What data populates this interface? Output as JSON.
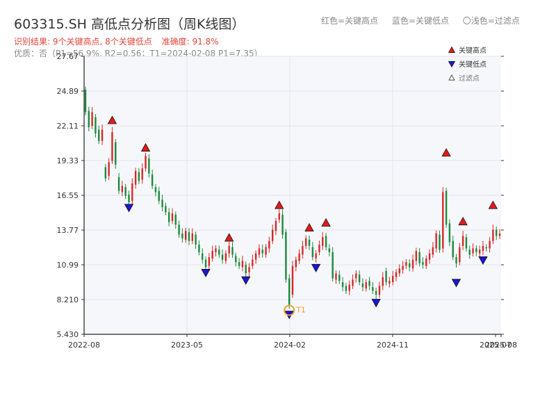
{
  "header": {
    "title": "603315.SH 高低点分析图（周K线图）",
    "legend_red": "红色=关键高点",
    "legend_blue": "蓝色=关键低点",
    "legend_light": "〇浅色=过滤点",
    "result_text": "识别结果: 9个关键高点, 8个关键低点",
    "accuracy_text": "准确度: 91.8%",
    "quality_text": "优质：否（P1=56.9%, R2=0.56；T1=2024-02-08 P1=7.35）"
  },
  "colors": {
    "up": "#d62728",
    "down": "#1a8a3c",
    "high_marker": "#e31a1c",
    "low_marker": "#1a17d6",
    "t1_marker": "#f0a030",
    "title_red": "#e0463a",
    "plot_bg": "#f6f7fa",
    "grid": "#e3e6ee"
  },
  "chart_data": {
    "type": "candlestick",
    "title": "603315.SH 高低点分析图（周K线图）",
    "ylim": [
      5.43,
      27.67
    ],
    "yticks": [
      "27.67",
      "24.89",
      "22.11",
      "19.33",
      "16.55",
      "13.77",
      "10.99",
      "8.210",
      "5.430"
    ],
    "xtick_labels": [
      "2022-08",
      "2023-05",
      "2024-02",
      "2024-11",
      "2025-07",
      "2025-08"
    ],
    "grid": true,
    "legend_placement": "top-right",
    "legend": [
      {
        "label": "关键高点",
        "kind": "high"
      },
      {
        "label": "关键低点",
        "kind": "low"
      },
      {
        "label": "过滤点",
        "kind": "filtered"
      }
    ],
    "t1_label": "T1",
    "t1_value": 7.35,
    "key_highs": [
      {
        "i": 8,
        "value": 22.1
      },
      {
        "i": 18,
        "value": 19.9
      },
      {
        "i": 43,
        "value": 12.7
      },
      {
        "i": 58,
        "value": 15.3
      },
      {
        "i": 67,
        "value": 13.5
      },
      {
        "i": 72,
        "value": 13.9
      },
      {
        "i": 108,
        "value": 19.5
      },
      {
        "i": 113,
        "value": 14.0
      },
      {
        "i": 122,
        "value": 15.3
      }
    ],
    "key_lows": [
      {
        "i": 13,
        "value": 15.9
      },
      {
        "i": 36,
        "value": 10.7
      },
      {
        "i": 48,
        "value": 10.1
      },
      {
        "i": 61,
        "value": 7.35
      },
      {
        "i": 69,
        "value": 11.1
      },
      {
        "i": 87,
        "value": 8.3
      },
      {
        "i": 111,
        "value": 9.9
      },
      {
        "i": 119,
        "value": 11.7
      }
    ],
    "candles": [
      [
        25.0,
        23.2
      ],
      [
        23.3,
        22.0
      ],
      [
        22.1,
        23.2
      ],
      [
        22.8,
        21.5
      ],
      [
        21.8,
        20.9
      ],
      [
        20.9,
        21.8
      ],
      [
        18.8,
        17.9
      ],
      [
        18.1,
        19.2
      ],
      [
        19.3,
        21.6
      ],
      [
        20.8,
        19.0
      ],
      [
        18.0,
        16.9
      ],
      [
        16.8,
        17.3
      ],
      [
        17.2,
        16.5
      ],
      [
        16.6,
        16.0
      ],
      [
        16.1,
        17.5
      ],
      [
        17.4,
        18.5
      ],
      [
        18.4,
        17.7
      ],
      [
        17.8,
        18.7
      ],
      [
        18.7,
        19.7
      ],
      [
        19.5,
        18.3
      ],
      [
        18.2,
        17.3
      ],
      [
        17.2,
        16.8
      ],
      [
        16.9,
        16.1
      ],
      [
        16.2,
        15.6
      ],
      [
        15.7,
        15.2
      ],
      [
        15.2,
        14.4
      ],
      [
        14.5,
        15.1
      ],
      [
        15.0,
        14.2
      ],
      [
        14.2,
        13.4
      ],
      [
        13.5,
        13.1
      ],
      [
        13.0,
        13.7
      ],
      [
        13.6,
        12.9
      ],
      [
        12.9,
        13.5
      ],
      [
        13.4,
        12.6
      ],
      [
        12.6,
        12.0
      ],
      [
        11.9,
        11.4
      ],
      [
        11.4,
        10.8
      ],
      [
        10.9,
        11.6
      ],
      [
        11.5,
        12.1
      ],
      [
        12.0,
        12.3
      ],
      [
        12.2,
        11.8
      ],
      [
        11.8,
        11.4
      ],
      [
        11.3,
        11.9
      ],
      [
        11.9,
        12.5
      ],
      [
        12.4,
        11.8
      ],
      [
        11.7,
        11.2
      ],
      [
        11.2,
        10.9
      ],
      [
        10.8,
        11.3
      ],
      [
        11.0,
        10.3
      ],
      [
        10.4,
        10.8
      ],
      [
        10.9,
        11.4
      ],
      [
        11.4,
        11.9
      ],
      [
        11.8,
        12.3
      ],
      [
        12.2,
        11.9
      ],
      [
        11.8,
        12.4
      ],
      [
        12.3,
        12.9
      ],
      [
        12.9,
        13.8
      ],
      [
        13.7,
        14.5
      ],
      [
        14.6,
        15.1
      ],
      [
        15.0,
        13.4
      ],
      [
        13.6,
        9.8
      ],
      [
        9.9,
        7.8
      ],
      [
        8.6,
        10.9
      ],
      [
        10.8,
        11.4
      ],
      [
        11.3,
        11.9
      ],
      [
        11.8,
        12.5
      ],
      [
        12.5,
        13.1
      ],
      [
        13.0,
        12.5
      ],
      [
        12.4,
        11.6
      ],
      [
        11.5,
        11.9
      ],
      [
        12.0,
        12.6
      ],
      [
        12.5,
        13.2
      ],
      [
        13.3,
        12.4
      ],
      [
        12.3,
        12.0
      ],
      [
        12.0,
        9.9
      ],
      [
        9.8,
        10.3
      ],
      [
        10.2,
        9.7
      ],
      [
        9.6,
        9.2
      ],
      [
        9.3,
        8.9
      ],
      [
        8.9,
        9.4
      ],
      [
        9.3,
        9.8
      ],
      [
        9.9,
        10.3
      ],
      [
        10.2,
        9.6
      ],
      [
        9.5,
        9.2
      ],
      [
        9.1,
        9.6
      ],
      [
        9.7,
        9.3
      ],
      [
        9.2,
        8.9
      ],
      [
        8.9,
        8.6
      ],
      [
        8.6,
        9.3
      ],
      [
        9.3,
        10.0
      ],
      [
        10.5,
        9.6
      ],
      [
        9.5,
        9.7
      ],
      [
        9.6,
        10.1
      ],
      [
        10.0,
        10.4
      ],
      [
        10.3,
        10.7
      ],
      [
        10.6,
        10.9
      ],
      [
        10.9,
        11.2
      ],
      [
        11.1,
        10.8
      ],
      [
        10.7,
        11.4
      ],
      [
        11.3,
        12.1
      ],
      [
        12.0,
        11.1
      ],
      [
        11.2,
        11.0
      ],
      [
        10.9,
        11.5
      ],
      [
        11.4,
        11.9
      ],
      [
        11.8,
        12.4
      ],
      [
        12.3,
        13.5
      ],
      [
        13.4,
        12.2
      ],
      [
        12.3,
        16.8
      ],
      [
        16.9,
        14.2
      ],
      [
        14.3,
        12.8
      ],
      [
        12.9,
        11.6
      ],
      [
        11.6,
        11.1
      ],
      [
        11.2,
        12.4
      ],
      [
        12.5,
        13.3
      ],
      [
        13.2,
        12.3
      ],
      [
        12.2,
        11.8
      ],
      [
        11.9,
        12.3
      ],
      [
        12.3,
        12.0
      ],
      [
        11.9,
        12.2
      ],
      [
        12.1,
        12.5
      ],
      [
        12.4,
        12.3
      ],
      [
        12.3,
        12.9
      ],
      [
        12.9,
        13.8
      ],
      [
        13.8,
        13.3
      ],
      [
        13.3,
        13.5
      ]
    ]
  }
}
